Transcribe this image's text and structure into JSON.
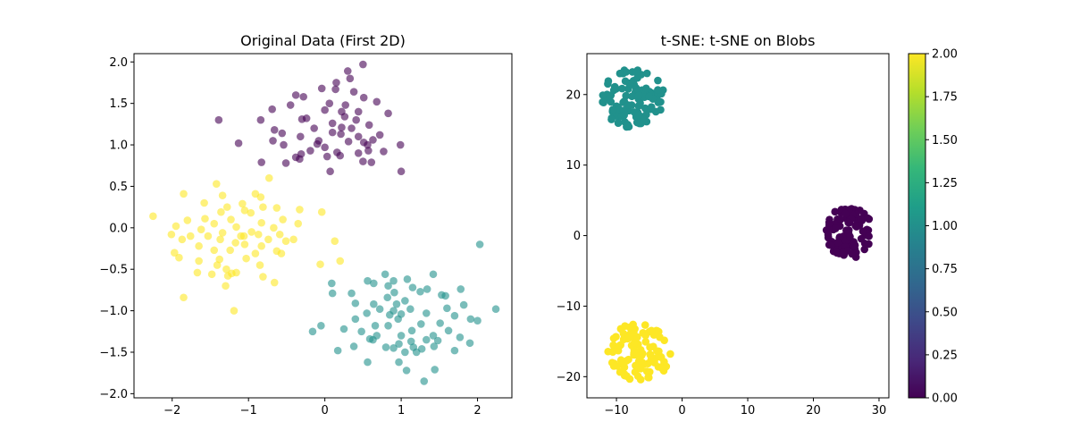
{
  "chart_data": [
    {
      "type": "scatter",
      "title": "Original Data (First 2D)",
      "xlabel": "",
      "ylabel": "",
      "xlim": [
        -2.5,
        2.45
      ],
      "ylim": [
        -2.05,
        2.1
      ],
      "xticks": [
        -2,
        -1,
        0,
        1,
        2
      ],
      "xtick_labels": [
        "−2",
        "−1",
        "0",
        "1",
        "2"
      ],
      "yticks": [
        -2.0,
        -1.5,
        -1.0,
        -0.5,
        0.0,
        0.5,
        1.0,
        1.5,
        2.0
      ],
      "ytick_labels": [
        "−2.0",
        "−1.5",
        "−1.0",
        "−0.5",
        "0.0",
        "0.5",
        "1.0",
        "1.5",
        "2.0"
      ],
      "grid": false,
      "colormap": "viridis",
      "marker_alpha": 0.6,
      "series": [
        {
          "color_value": 0,
          "color": "#440154",
          "points": [
            [
              0.5,
              1.97
            ],
            [
              0.3,
              1.89
            ],
            [
              0.33,
              1.8
            ],
            [
              0.15,
              1.75
            ],
            [
              -0.04,
              1.68
            ],
            [
              0.14,
              1.67
            ],
            [
              0.38,
              1.64
            ],
            [
              -0.38,
              1.6
            ],
            [
              -0.28,
              1.58
            ],
            [
              0.51,
              1.57
            ],
            [
              0.68,
              1.52
            ],
            [
              -0.45,
              1.48
            ],
            [
              0.06,
              1.5
            ],
            [
              0.27,
              1.48
            ],
            [
              -0.69,
              1.43
            ],
            [
              0.0,
              1.42
            ],
            [
              0.22,
              1.4
            ],
            [
              0.44,
              1.4
            ],
            [
              -1.39,
              1.3
            ],
            [
              -0.84,
              1.3
            ],
            [
              -0.3,
              1.31
            ],
            [
              -0.24,
              1.32
            ],
            [
              0.26,
              1.34
            ],
            [
              0.41,
              1.3
            ],
            [
              0.83,
              1.38
            ],
            [
              0.1,
              1.26
            ],
            [
              0.22,
              1.21
            ],
            [
              0.35,
              1.2
            ],
            [
              -0.66,
              1.18
            ],
            [
              -0.14,
              1.2
            ],
            [
              0.58,
              1.24
            ],
            [
              -0.56,
              1.14
            ],
            [
              0.1,
              1.15
            ],
            [
              0.21,
              1.13
            ],
            [
              -0.32,
              1.1
            ],
            [
              0.44,
              1.1
            ],
            [
              -0.08,
              1.05
            ],
            [
              0.63,
              1.06
            ],
            [
              0.72,
              1.12
            ],
            [
              -1.13,
              1.02
            ],
            [
              -0.68,
              1.05
            ],
            [
              -0.54,
              1.0
            ],
            [
              0.31,
              1.04
            ],
            [
              0.51,
              1.03
            ],
            [
              0.56,
              1.0
            ],
            [
              0.0,
              0.97
            ],
            [
              -0.19,
              0.93
            ],
            [
              0.57,
              0.93
            ],
            [
              0.99,
              1.0
            ],
            [
              0.16,
              0.91
            ],
            [
              -0.31,
              0.89
            ],
            [
              0.44,
              0.9
            ],
            [
              0.03,
              0.86
            ],
            [
              0.77,
              0.92
            ],
            [
              -0.38,
              0.85
            ],
            [
              -0.33,
              0.83
            ],
            [
              0.5,
              0.8
            ],
            [
              0.61,
              0.79
            ],
            [
              -0.83,
              0.79
            ],
            [
              -0.51,
              0.78
            ],
            [
              0.07,
              0.68
            ],
            [
              1.0,
              0.68
            ],
            [
              -0.1,
              1.01
            ],
            [
              0.2,
              0.87
            ]
          ]
        },
        {
          "color_value": 1,
          "color": "#21918c",
          "points": [
            [
              2.03,
              -0.2
            ],
            [
              0.09,
              -0.67
            ],
            [
              0.56,
              -0.64
            ],
            [
              0.9,
              -0.64
            ],
            [
              1.08,
              -0.62
            ],
            [
              1.42,
              -0.56
            ],
            [
              0.79,
              -0.56
            ],
            [
              0.1,
              -0.79
            ],
            [
              0.35,
              -0.79
            ],
            [
              0.64,
              -0.67
            ],
            [
              0.83,
              -0.7
            ],
            [
              0.91,
              -0.78
            ],
            [
              1.15,
              -0.72
            ],
            [
              1.34,
              -0.74
            ],
            [
              1.53,
              -0.81
            ],
            [
              1.78,
              -0.74
            ],
            [
              0.82,
              -0.84
            ],
            [
              0.94,
              -0.92
            ],
            [
              1.05,
              -0.88
            ],
            [
              1.25,
              -0.77
            ],
            [
              1.58,
              -0.82
            ],
            [
              0.4,
              -0.91
            ],
            [
              0.64,
              -0.92
            ],
            [
              0.72,
              -0.98
            ],
            [
              0.9,
              -1.0
            ],
            [
              1.12,
              -0.98
            ],
            [
              1.6,
              -0.97
            ],
            [
              1.82,
              -0.93
            ],
            [
              0.55,
              -1.03
            ],
            [
              0.85,
              -1.05
            ],
            [
              1.0,
              -1.04
            ],
            [
              1.33,
              -1.03
            ],
            [
              1.7,
              -1.06
            ],
            [
              2.24,
              -0.98
            ],
            [
              0.4,
              -1.1
            ],
            [
              0.96,
              -1.1
            ],
            [
              1.51,
              -1.15
            ],
            [
              1.91,
              -1.1
            ],
            [
              2.0,
              -1.12
            ],
            [
              0.25,
              -1.22
            ],
            [
              0.66,
              -1.18
            ],
            [
              0.83,
              -1.18
            ],
            [
              1.14,
              -1.24
            ],
            [
              1.62,
              -1.24
            ],
            [
              -0.05,
              -1.18
            ],
            [
              -0.16,
              -1.25
            ],
            [
              0.48,
              -1.25
            ],
            [
              0.68,
              -1.3
            ],
            [
              1.42,
              -1.3
            ],
            [
              1.77,
              -1.32
            ],
            [
              0.63,
              -1.35
            ],
            [
              0.59,
              -1.34
            ],
            [
              0.97,
              -1.4
            ],
            [
              1.13,
              -1.37
            ],
            [
              1.33,
              -1.35
            ],
            [
              1.48,
              -1.36
            ],
            [
              1.9,
              -1.39
            ],
            [
              0.38,
              -1.43
            ],
            [
              0.9,
              -1.45
            ],
            [
              1.16,
              -1.44
            ],
            [
              1.27,
              -1.46
            ],
            [
              1.43,
              -1.43
            ],
            [
              0.17,
              -1.48
            ],
            [
              0.8,
              -1.44
            ],
            [
              1.05,
              -1.5
            ],
            [
              1.2,
              -1.5
            ],
            [
              1.7,
              -1.48
            ],
            [
              0.56,
              -1.62
            ],
            [
              0.97,
              -1.62
            ],
            [
              1.07,
              -1.72
            ],
            [
              1.44,
              -1.71
            ],
            [
              1.3,
              -1.85
            ],
            [
              1.0,
              -1.3
            ],
            [
              1.26,
              -1.16
            ]
          ]
        },
        {
          "color_value": 2,
          "color": "#fde725",
          "points": [
            [
              -0.73,
              0.6
            ],
            [
              -1.42,
              0.53
            ],
            [
              -1.85,
              0.41
            ],
            [
              -1.34,
              0.39
            ],
            [
              -0.91,
              0.41
            ],
            [
              -0.84,
              0.37
            ],
            [
              -1.58,
              0.3
            ],
            [
              -1.08,
              0.29
            ],
            [
              -1.28,
              0.25
            ],
            [
              -0.81,
              0.25
            ],
            [
              -0.63,
              0.24
            ],
            [
              -1.36,
              0.19
            ],
            [
              -1.05,
              0.21
            ],
            [
              -0.97,
              0.18
            ],
            [
              -0.33,
              0.22
            ],
            [
              -0.04,
              0.19
            ],
            [
              -2.25,
              0.14
            ],
            [
              -1.8,
              0.09
            ],
            [
              -1.57,
              0.11
            ],
            [
              -1.23,
              0.1
            ],
            [
              -0.55,
              0.1
            ],
            [
              -1.95,
              0.02
            ],
            [
              -1.45,
              0.05
            ],
            [
              -1.16,
              0.01
            ],
            [
              -0.83,
              0.06
            ],
            [
              -0.67,
              0.0
            ],
            [
              -0.35,
              0.05
            ],
            [
              -1.62,
              -0.02
            ],
            [
              -1.34,
              -0.06
            ],
            [
              -0.96,
              -0.05
            ],
            [
              -0.59,
              -0.08
            ],
            [
              -2.01,
              -0.08
            ],
            [
              -1.76,
              -0.1
            ],
            [
              -1.53,
              -0.1
            ],
            [
              -1.06,
              -0.1
            ],
            [
              -0.87,
              -0.08
            ],
            [
              -0.41,
              -0.14
            ],
            [
              -1.37,
              -0.14
            ],
            [
              -0.74,
              -0.14
            ],
            [
              -1.87,
              -0.14
            ],
            [
              -1.17,
              -0.18
            ],
            [
              -0.51,
              -0.16
            ],
            [
              0.13,
              -0.16
            ],
            [
              -1.65,
              -0.22
            ],
            [
              -1.05,
              -0.2
            ],
            [
              -0.83,
              -0.22
            ],
            [
              -1.45,
              -0.27
            ],
            [
              -0.63,
              -0.28
            ],
            [
              -1.97,
              -0.3
            ],
            [
              -1.24,
              -0.27
            ],
            [
              -0.91,
              -0.31
            ],
            [
              -0.57,
              -0.31
            ],
            [
              -1.91,
              -0.36
            ],
            [
              -1.65,
              -0.4
            ],
            [
              -1.38,
              -0.38
            ],
            [
              -1.03,
              -0.37
            ],
            [
              -0.06,
              -0.44
            ],
            [
              0.2,
              -0.4
            ],
            [
              -1.41,
              -0.45
            ],
            [
              -0.85,
              -0.45
            ],
            [
              -1.67,
              -0.54
            ],
            [
              -1.29,
              -0.5
            ],
            [
              -1.16,
              -0.54
            ],
            [
              -1.48,
              -0.56
            ],
            [
              -1.27,
              -0.58
            ],
            [
              -1.22,
              -0.55
            ],
            [
              -0.81,
              -0.59
            ],
            [
              -0.66,
              -0.66
            ],
            [
              -1.3,
              -0.7
            ],
            [
              -1.85,
              -0.84
            ],
            [
              -1.19,
              -1.0
            ],
            [
              -1.1,
              -0.1
            ]
          ]
        }
      ]
    },
    {
      "type": "scatter",
      "title": "t-SNE: t-SNE on Blobs",
      "xlabel": "",
      "ylabel": "",
      "xlim": [
        -14.5,
        31.5
      ],
      "ylim": [
        -23.0,
        25.8
      ],
      "xticks": [
        -10,
        0,
        10,
        20,
        30
      ],
      "xtick_labels": [
        "−10",
        "0",
        "10",
        "20",
        "30"
      ],
      "yticks": [
        -20,
        -10,
        0,
        10,
        20
      ],
      "ytick_labels": [
        "−20",
        "−10",
        "0",
        "10",
        "20"
      ],
      "grid": false,
      "colormap": "viridis",
      "marker_alpha": 1.0,
      "clusters": [
        {
          "color_value": 0,
          "color": "#440154",
          "center": [
            25.5,
            0.5
          ],
          "spread": [
            3.6,
            3.7
          ],
          "count": 100
        },
        {
          "color_value": 1,
          "color": "#21918c",
          "center": [
            -7.5,
            19.5
          ],
          "spread": [
            4.8,
            4.2
          ],
          "count": 100
        },
        {
          "color_value": 2,
          "color": "#fde725",
          "center": [
            -6.5,
            -16.5
          ],
          "spread": [
            4.8,
            4.2
          ],
          "count": 100
        }
      ],
      "colorbar": {
        "colormap": "viridis",
        "range": [
          0.0,
          2.0
        ],
        "ticks": [
          0.0,
          0.25,
          0.5,
          0.75,
          1.0,
          1.25,
          1.5,
          1.75,
          2.0
        ],
        "tick_labels": [
          "0.00",
          "0.25",
          "0.50",
          "0.75",
          "1.00",
          "1.25",
          "1.50",
          "1.75",
          "2.00"
        ],
        "stops": [
          "#440154",
          "#482878",
          "#3e4989",
          "#31688e",
          "#26828e",
          "#1f9e89",
          "#35b779",
          "#6ece58",
          "#b5de2b",
          "#fde725"
        ]
      }
    }
  ]
}
